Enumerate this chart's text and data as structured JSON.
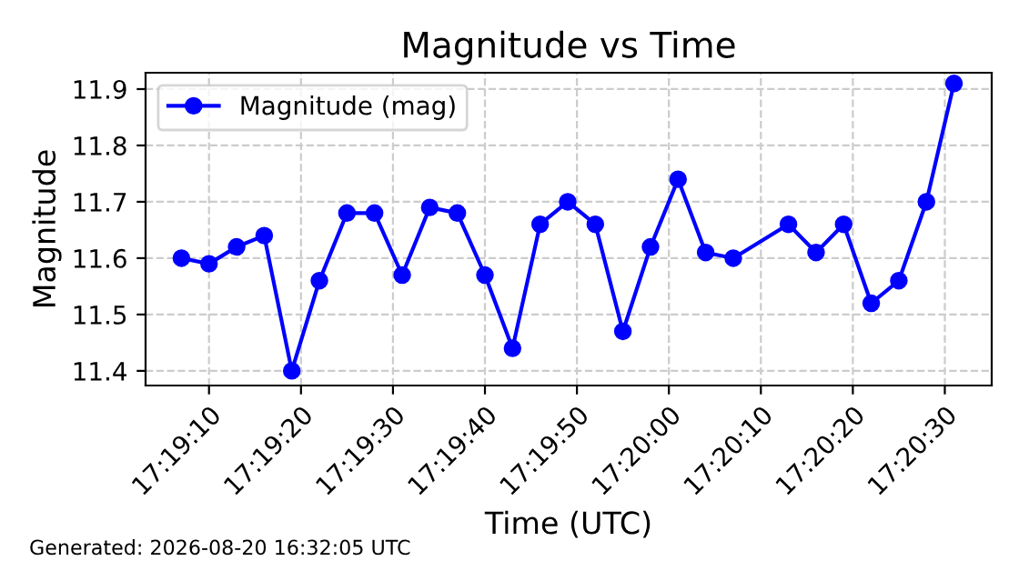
{
  "chart_data": {
    "type": "line",
    "title": "Magnitude vs Time",
    "xlabel": "Time (UTC)",
    "ylabel": "Magnitude",
    "x": [
      17.318611,
      17.319444,
      17.320278,
      17.321111,
      17.321944,
      17.322778,
      17.323611,
      17.324444,
      17.325278,
      17.326111,
      17.326944,
      17.327778,
      17.328611,
      17.329444,
      17.330278,
      17.331111,
      17.331944,
      17.332778,
      17.333611,
      17.334444,
      17.335278,
      17.336944,
      17.337778,
      17.338611,
      17.339444,
      17.340278,
      17.341111,
      17.341944
    ],
    "series": [
      {
        "name": "Magnitude (mag)",
        "color": "#0000ff",
        "values": [
          11.6,
          11.59,
          11.62,
          11.64,
          11.4,
          11.56,
          11.68,
          11.68,
          11.57,
          11.69,
          11.68,
          11.57,
          11.44,
          11.66,
          11.7,
          11.66,
          11.47,
          11.62,
          11.74,
          11.61,
          11.6,
          11.66,
          11.61,
          11.66,
          11.52,
          11.56,
          11.7,
          11.91
        ]
      }
    ],
    "xlim": [
      17.317528,
      17.343083
    ],
    "ylim": [
      11.374,
      11.929
    ],
    "xticks": [
      {
        "value": 17.319444,
        "label": "17:19:10"
      },
      {
        "value": 17.322222,
        "label": "17:19:20"
      },
      {
        "value": 17.325,
        "label": "17:19:30"
      },
      {
        "value": 17.327778,
        "label": "17:19:40"
      },
      {
        "value": 17.330556,
        "label": "17:19:50"
      },
      {
        "value": 17.333333,
        "label": "17:20:00"
      },
      {
        "value": 17.336111,
        "label": "17:20:10"
      },
      {
        "value": 17.338889,
        "label": "17:20:20"
      },
      {
        "value": 17.341667,
        "label": "17:20:30"
      }
    ],
    "yticks": [
      11.4,
      11.5,
      11.6,
      11.7,
      11.8,
      11.9
    ],
    "grid": true,
    "legend": "top left",
    "marker": "circle",
    "line_style": "solid",
    "annotations": [
      "Generated: 2026-08-20 16:32:05 UTC"
    ]
  }
}
